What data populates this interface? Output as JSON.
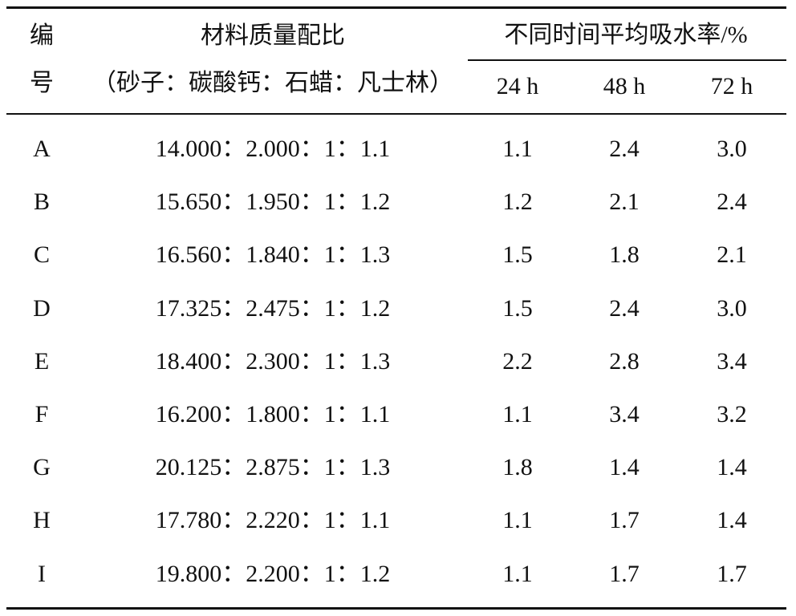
{
  "table": {
    "header": {
      "id": [
        "编",
        "号"
      ],
      "ratio": [
        "材料质量配比",
        "（砂子：碳酸钙：石蜡：凡士林）"
      ],
      "group": "不同时间平均吸水率/%",
      "times": [
        "24 h",
        "48 h",
        "72 h"
      ]
    },
    "rows": [
      [
        "A",
        "14.000：2.000：1：1.1",
        "1.1",
        "2.4",
        "3.0"
      ],
      [
        "B",
        "15.650：1.950：1：1.2",
        "1.2",
        "2.1",
        "2.4"
      ],
      [
        "C",
        "16.560：1.840：1：1.3",
        "1.5",
        "1.8",
        "2.1"
      ],
      [
        "D",
        "17.325：2.475：1：1.2",
        "1.5",
        "2.4",
        "3.0"
      ],
      [
        "E",
        "18.400：2.300：1：1.3",
        "2.2",
        "2.8",
        "3.4"
      ],
      [
        "F",
        "16.200：1.800：1：1.1",
        "1.1",
        "3.4",
        "3.2"
      ],
      [
        "G",
        "20.125：2.875：1：1.3",
        "1.8",
        "1.4",
        "1.4"
      ],
      [
        "H",
        "17.780：2.220：1：1.1",
        "1.1",
        "1.7",
        "1.4"
      ],
      [
        "I",
        "19.800：2.200：1：1.2",
        "1.1",
        "1.7",
        "1.7"
      ]
    ]
  }
}
